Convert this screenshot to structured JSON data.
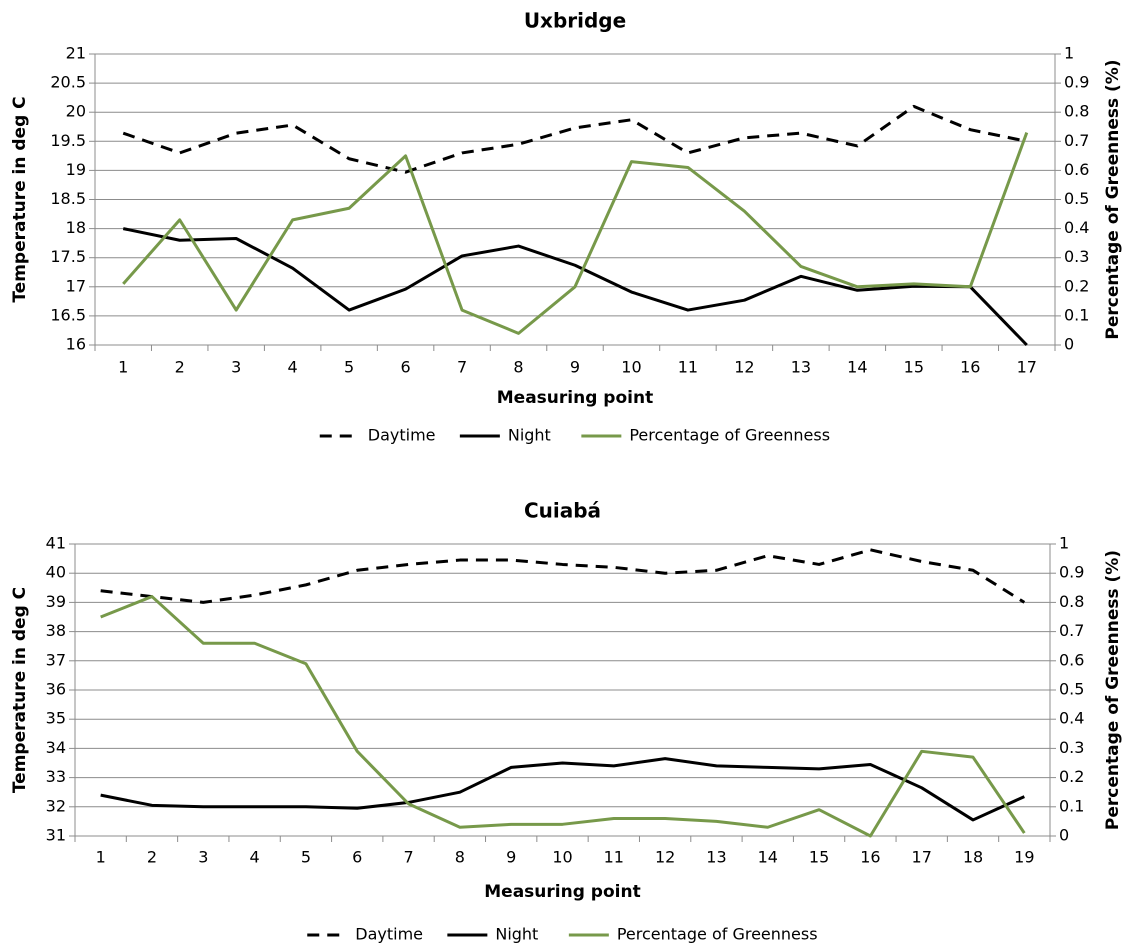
{
  "chart_data": [
    {
      "type": "line",
      "title": "Uxbridge",
      "xlabel": "Measuring point",
      "ylabel": "Temperature in deg C",
      "y2label": "Percentage of Greenness (%)",
      "categories": [
        "1",
        "2",
        "3",
        "4",
        "5",
        "6",
        "7",
        "8",
        "9",
        "10",
        "11",
        "12",
        "13",
        "14",
        "15",
        "16",
        "17"
      ],
      "series": [
        {
          "name": "Daytime",
          "color": "#000000",
          "dash": true,
          "values": [
            19.64,
            19.3,
            19.64,
            19.78,
            19.2,
            18.97,
            19.3,
            19.45,
            19.73,
            19.87,
            19.3,
            19.56,
            19.64,
            19.42,
            20.1,
            19.7,
            19.5
          ]
        },
        {
          "name": "Night",
          "color": "#000000",
          "dash": false,
          "values": [
            18.0,
            17.8,
            17.83,
            17.32,
            16.6,
            16.96,
            17.53,
            17.7,
            17.37,
            16.91,
            16.6,
            16.77,
            17.18,
            16.94,
            17.01,
            17.0,
            16.0
          ]
        },
        {
          "name": "Percentage of Greenness",
          "color": "#77994a",
          "dash": false,
          "axis": "y2",
          "values": [
            0.21,
            0.43,
            0.12,
            0.43,
            0.47,
            0.65,
            0.12,
            0.04,
            0.2,
            0.63,
            0.61,
            0.46,
            0.27,
            0.2,
            0.21,
            0.2,
            0.73
          ]
        }
      ],
      "ylim": [
        16,
        21
      ],
      "yticks": [
        16,
        16.5,
        17,
        17.5,
        18,
        18.5,
        19,
        19.5,
        20,
        20.5,
        21
      ],
      "y2lim": [
        0,
        1
      ],
      "y2ticks": [
        0,
        0.1,
        0.2,
        0.3,
        0.4,
        0.5,
        0.6,
        0.7,
        0.8,
        0.9,
        1
      ],
      "grid": true,
      "legend": "bottom"
    },
    {
      "type": "line",
      "title": "Cuiabá",
      "xlabel": "Measuring point",
      "ylabel": "Temperature in deg C",
      "y2label": "Percentage of Greenness (%)",
      "categories": [
        "1",
        "2",
        "3",
        "4",
        "5",
        "6",
        "7",
        "8",
        "9",
        "10",
        "11",
        "12",
        "13",
        "14",
        "15",
        "16",
        "17",
        "18",
        "19"
      ],
      "series": [
        {
          "name": "Daytime",
          "color": "#000000",
          "dash": true,
          "values": [
            39.4,
            39.2,
            39.0,
            39.25,
            39.6,
            40.1,
            40.3,
            40.45,
            40.45,
            40.3,
            40.2,
            40.0,
            40.1,
            40.6,
            40.3,
            40.8,
            40.4,
            40.1,
            39.0
          ]
        },
        {
          "name": "Night",
          "color": "#000000",
          "dash": false,
          "values": [
            32.4,
            32.05,
            32.0,
            32.0,
            32.0,
            31.95,
            32.15,
            32.5,
            33.35,
            33.5,
            33.4,
            33.65,
            33.4,
            33.35,
            33.3,
            33.45,
            32.65,
            31.55,
            32.35
          ]
        },
        {
          "name": "Percentage of Greenness",
          "color": "#77994a",
          "dash": false,
          "axis": "y2",
          "values": [
            0.75,
            0.82,
            0.66,
            0.66,
            0.59,
            0.29,
            0.11,
            0.03,
            0.04,
            0.04,
            0.06,
            0.06,
            0.05,
            0.03,
            0.09,
            0.0,
            0.29,
            0.27,
            0.01
          ]
        }
      ],
      "ylim": [
        31,
        41
      ],
      "yticks": [
        31,
        32,
        33,
        34,
        35,
        36,
        37,
        38,
        39,
        40,
        41
      ],
      "y2lim": [
        0,
        1
      ],
      "y2ticks": [
        0,
        0.1,
        0.2,
        0.3,
        0.4,
        0.5,
        0.6,
        0.7,
        0.8,
        0.9,
        1
      ],
      "grid": true,
      "legend": "bottom"
    }
  ]
}
